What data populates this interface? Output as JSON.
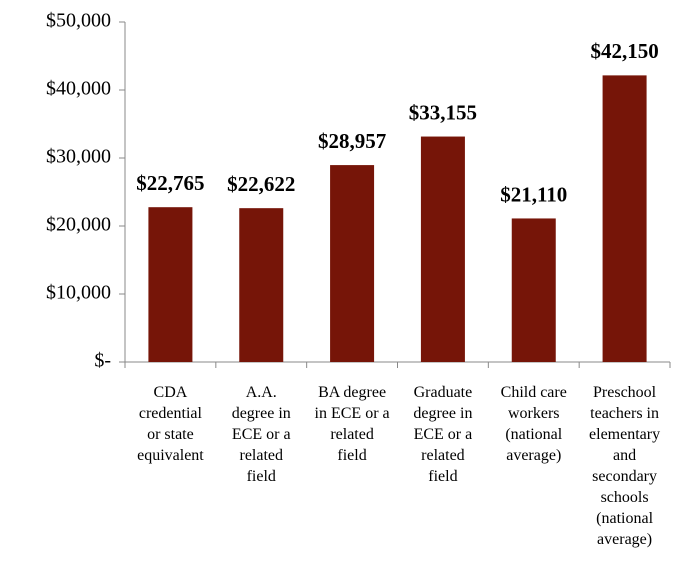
{
  "chart_data": {
    "type": "bar",
    "categories": [
      "CDA\ncredential\nor state\nequivalent",
      "A.A.\ndegree in\nECE or a\nrelated\nfield",
      "BA degree\nin ECE or a\nrelated\nfield",
      "Graduate\ndegree in\nECE or a\nrelated\nfield",
      "Child care\nworkers\n(national\naverage)",
      "Preschool\nteachers in\nelementary\nand\nsecondary\nschools\n(national\naverage)"
    ],
    "values": [
      22765,
      22622,
      28957,
      33155,
      21110,
      42150
    ],
    "value_labels": [
      "$22,765",
      "$22,622",
      "$28,957",
      "$33,155",
      "$21,110",
      "$42,150"
    ],
    "color": "#761508",
    "ylim": [
      0,
      50000
    ],
    "yticks": [
      {
        "value": 0,
        "label": "$-"
      },
      {
        "value": 10000,
        "label": "$10,000"
      },
      {
        "value": 20000,
        "label": "$20,000"
      },
      {
        "value": 30000,
        "label": "$30,000"
      },
      {
        "value": 40000,
        "label": "$40,000"
      },
      {
        "value": 50000,
        "label": "$50,000"
      }
    ],
    "grid": false
  }
}
